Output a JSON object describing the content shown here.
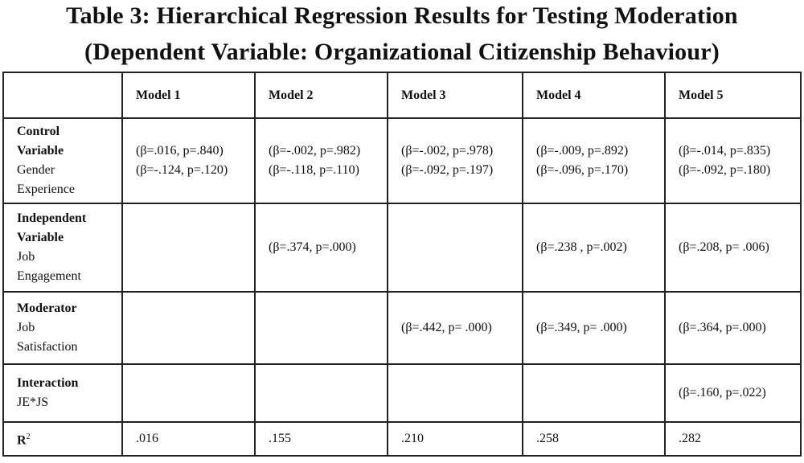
{
  "title_line1": "Table 3: Hierarchical Regression Results for Testing Moderation",
  "title_line2": "(Dependent Variable: Organizational Citizenship Behaviour)",
  "columns": [
    "",
    "Model 1",
    "Model 2",
    "Model 3",
    "Model 4",
    "Model 5"
  ],
  "rows": {
    "control": {
      "label_bold": [
        "Control",
        "Variable"
      ],
      "label_plain": [
        "Gender",
        "Experience"
      ],
      "cells": [
        [
          "(β=.016, p=.840)",
          "(β=-.124, p=.120)"
        ],
        [
          "(β=-.002, p=.982)",
          "(β=-.118, p=.110)"
        ],
        [
          "(β=-.002, p=.978)",
          "(β=-.092, p=.197)"
        ],
        [
          "(β=-.009, p=.892)",
          "(β=-.096, p=.170)"
        ],
        [
          "(β=-.014, p=.835)",
          "(β=-.092, p=.180)"
        ]
      ]
    },
    "independent": {
      "label_bold": [
        "Independent",
        "Variable"
      ],
      "label_plain": [
        "Job",
        "Engagement"
      ],
      "cells": [
        "",
        "(β=.374, p=.000)",
        "",
        "(β=.238 , p=.002)",
        "(β=.208, p= .006)"
      ]
    },
    "moderator": {
      "label_bold": [
        "Moderator"
      ],
      "label_plain": [
        "Job",
        "Satisfaction"
      ],
      "cells": [
        "",
        "",
        "(β=.442, p= .000)",
        "(β=.349, p= .000)",
        "(β=.364, p=.000)"
      ]
    },
    "interaction": {
      "label_bold": [
        "Interaction"
      ],
      "label_plain": [
        "JE*JS"
      ],
      "cells": [
        "",
        "",
        "",
        "",
        "(β=.160, p=.022)"
      ]
    },
    "r2": {
      "label": "R",
      "label_sup": "2",
      "cells": [
        ".016",
        ".155",
        ".210",
        ".258",
        ".282"
      ]
    }
  }
}
